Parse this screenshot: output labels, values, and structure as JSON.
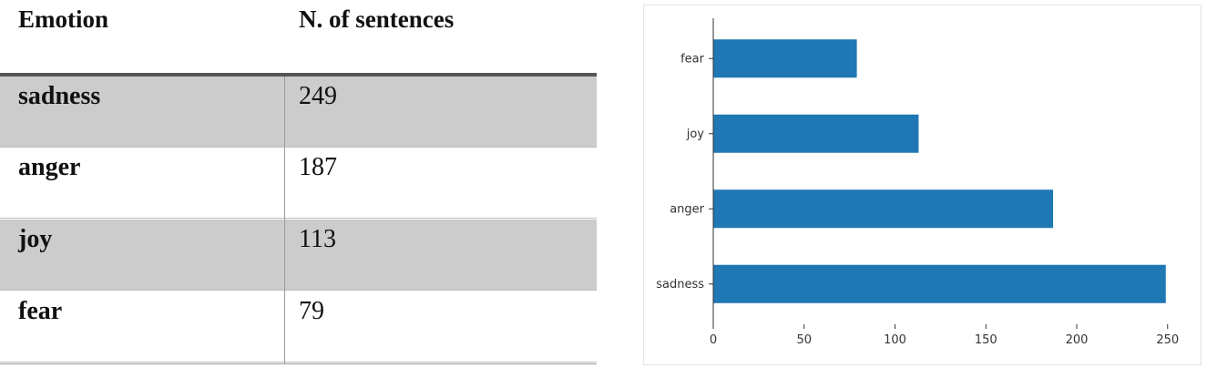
{
  "table": {
    "headers": [
      "Emotion",
      "N. of sentences"
    ],
    "rows": [
      {
        "emotion": "sadness",
        "count": "249"
      },
      {
        "emotion": "anger",
        "count": "187"
      },
      {
        "emotion": "joy",
        "count": "113"
      },
      {
        "emotion": "fear",
        "count": "79"
      }
    ]
  },
  "chart_data": {
    "type": "bar",
    "orientation": "horizontal",
    "categories": [
      "sadness",
      "anger",
      "joy",
      "fear"
    ],
    "values": [
      249,
      187,
      113,
      79
    ],
    "xticks": [
      0,
      50,
      100,
      150,
      200,
      250
    ],
    "xlim": [
      0,
      261
    ],
    "title": "",
    "xlabel": "",
    "ylabel": "",
    "grid": false,
    "bar_color": "#1f77b4"
  }
}
